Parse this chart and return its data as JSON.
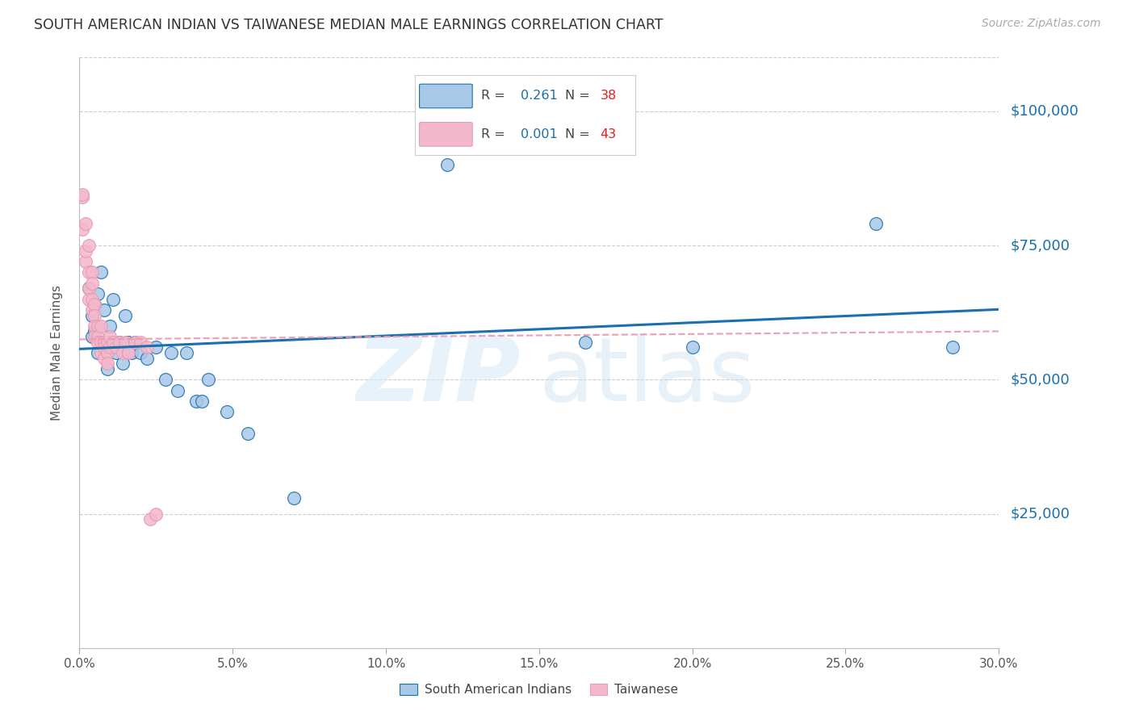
{
  "title": "SOUTH AMERICAN INDIAN VS TAIWANESE MEDIAN MALE EARNINGS CORRELATION CHART",
  "source": "Source: ZipAtlas.com",
  "ylabel": "Median Male Earnings",
  "ytick_labels": [
    "$25,000",
    "$50,000",
    "$75,000",
    "$100,000"
  ],
  "ytick_values": [
    25000,
    50000,
    75000,
    100000
  ],
  "y_min": 0,
  "y_max": 110000,
  "x_min": 0.0,
  "x_max": 0.3,
  "legend_R_blue": "0.261",
  "legend_N_blue": "38",
  "legend_R_pink": "0.001",
  "legend_N_pink": "43",
  "blue_color": "#a8c8e8",
  "pink_color": "#f4b8cc",
  "line_blue": "#1a6faf",
  "line_pink": "#e89ab0",
  "blue_scatter_x": [
    0.003,
    0.004,
    0.004,
    0.005,
    0.005,
    0.006,
    0.006,
    0.007,
    0.008,
    0.009,
    0.009,
    0.01,
    0.011,
    0.012,
    0.013,
    0.014,
    0.015,
    0.016,
    0.017,
    0.018,
    0.02,
    0.022,
    0.025,
    0.028,
    0.03,
    0.032,
    0.035,
    0.038,
    0.04,
    0.042,
    0.048,
    0.055,
    0.07,
    0.12,
    0.165,
    0.2,
    0.26,
    0.285
  ],
  "blue_scatter_y": [
    67000,
    62000,
    58000,
    64000,
    59000,
    66000,
    55000,
    70000,
    63000,
    57000,
    52000,
    60000,
    65000,
    55000,
    57000,
    53000,
    62000,
    57000,
    55000,
    57000,
    55000,
    54000,
    56000,
    50000,
    55000,
    48000,
    55000,
    46000,
    46000,
    50000,
    44000,
    40000,
    28000,
    90000,
    57000,
    56000,
    79000,
    56000
  ],
  "pink_scatter_x": [
    0.001,
    0.001,
    0.001,
    0.002,
    0.002,
    0.002,
    0.003,
    0.003,
    0.003,
    0.003,
    0.004,
    0.004,
    0.004,
    0.004,
    0.005,
    0.005,
    0.005,
    0.005,
    0.006,
    0.006,
    0.006,
    0.007,
    0.007,
    0.007,
    0.008,
    0.008,
    0.008,
    0.009,
    0.009,
    0.009,
    0.01,
    0.01,
    0.011,
    0.012,
    0.013,
    0.014,
    0.015,
    0.016,
    0.018,
    0.02,
    0.022,
    0.023,
    0.025
  ],
  "pink_scatter_y": [
    84000,
    84500,
    78000,
    79000,
    72000,
    74000,
    75000,
    70000,
    67000,
    65000,
    70000,
    68000,
    65000,
    63000,
    64000,
    62000,
    60000,
    58000,
    60000,
    58000,
    57000,
    60000,
    57000,
    55000,
    57000,
    56000,
    54000,
    57000,
    55000,
    53000,
    58000,
    56000,
    57000,
    56000,
    57000,
    55000,
    57000,
    55000,
    57000,
    57000,
    56000,
    24000,
    25000
  ]
}
